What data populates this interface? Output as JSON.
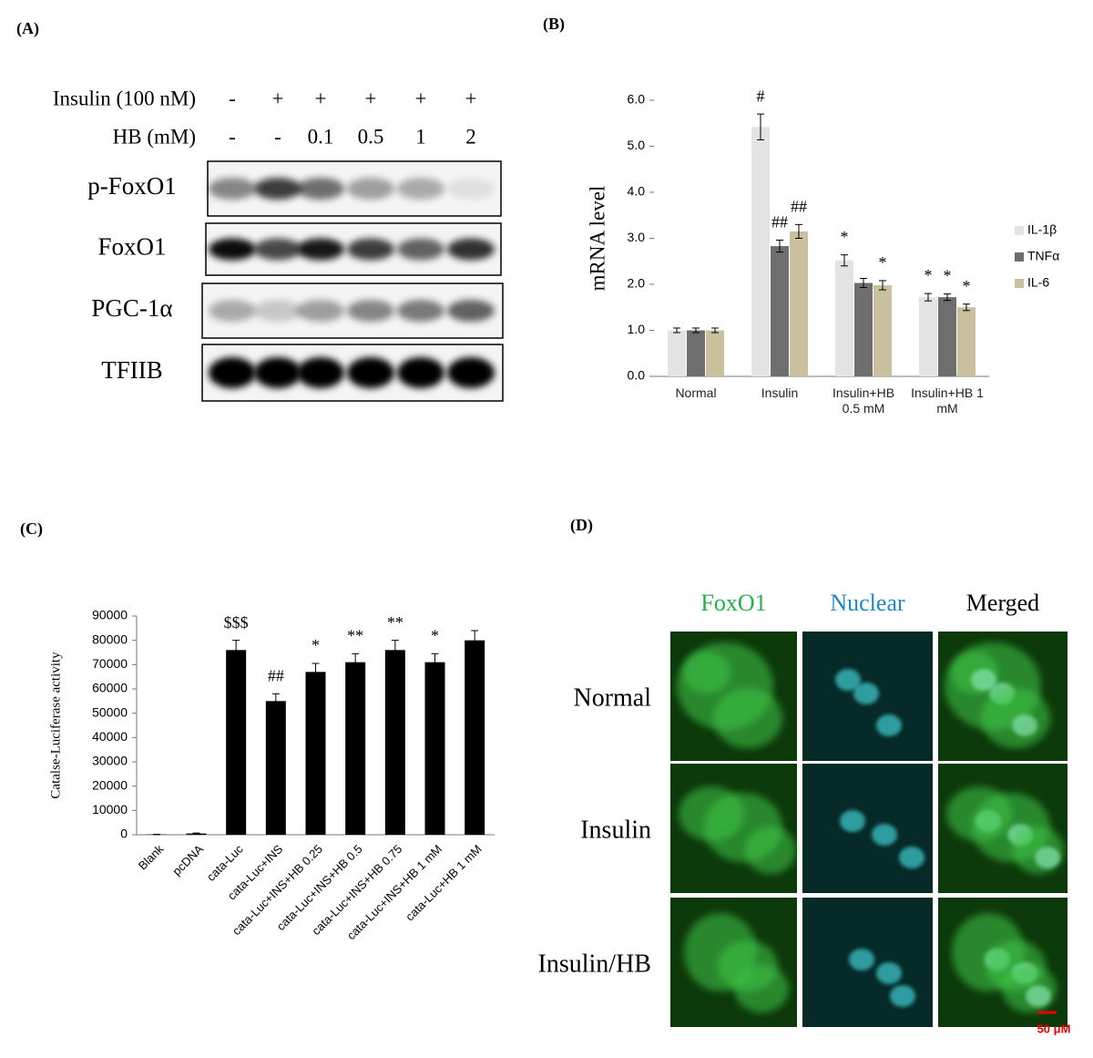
{
  "panel_a": {
    "label": "(A)",
    "treatments": [
      {
        "name": "Insulin (100 nM)",
        "lanes": [
          "-",
          "+",
          "+",
          "+",
          "+",
          "+"
        ]
      },
      {
        "name": "HB (mM)",
        "lanes": [
          "-",
          "-",
          "0.1",
          "0.5",
          "1",
          "2"
        ]
      }
    ],
    "blots": [
      "p-FoxO1",
      "FoxO1",
      "PGC-1α",
      "TFIIB"
    ]
  },
  "chart_data": [
    {
      "type": "bar",
      "panel_label": "(B)",
      "y_label": "mRNA level",
      "categories": [
        "Normal",
        "Insulin",
        "Insulin+HB 0.5 mM",
        "Insulin+HB 1 mM"
      ],
      "series": [
        {
          "name": "IL-1β",
          "color": "#e3e3e3",
          "values": [
            1.0,
            5.42,
            2.52,
            1.72
          ],
          "errors": [
            0.05,
            0.28,
            0.12,
            0.08
          ],
          "annotations": [
            null,
            "#",
            "*",
            "*"
          ]
        },
        {
          "name": "TNFα",
          "color": "#6e6e6e",
          "values": [
            1.0,
            2.83,
            2.03,
            1.72
          ],
          "errors": [
            0.05,
            0.13,
            0.1,
            0.07
          ],
          "annotations": [
            null,
            "##",
            null,
            "*"
          ]
        },
        {
          "name": "IL-6",
          "color": "#c9c19e",
          "values": [
            1.0,
            3.15,
            1.98,
            1.5
          ],
          "errors": [
            0.05,
            0.15,
            0.1,
            0.07
          ],
          "annotations": [
            null,
            "##",
            "*",
            "*"
          ]
        }
      ],
      "ylim": [
        0,
        6
      ],
      "yticks": [
        {
          "value": 0,
          "label": "0.0"
        },
        {
          "value": 1,
          "label": "1.0"
        },
        {
          "value": 2,
          "label": "2.0"
        },
        {
          "value": 3,
          "label": "3.0"
        },
        {
          "value": 4,
          "label": "4.0"
        },
        {
          "value": 5,
          "label": "5.0"
        },
        {
          "value": 6,
          "label": "6.0"
        }
      ],
      "grid": false,
      "legend": "right"
    },
    {
      "type": "bar",
      "panel_label": "(C)",
      "y_label": "Catalse-Luciferase activity",
      "categories": [
        "Blank",
        "pcDNA",
        "cata-Luc",
        "cata-Luc+INS",
        "cata-Luc+INS+HB 0.25",
        "cata-Luc+INS+HB 0.5",
        "cata-Luc+INS+HB 0.75",
        "cata-Luc+INS+HB 1 mM",
        "cata-Luc+HB 1 mM"
      ],
      "values": [
        100,
        500,
        76000,
        55000,
        67000,
        71000,
        76000,
        71000,
        80000
      ],
      "errors": [
        50,
        200,
        4000,
        3000,
        3500,
        3500,
        4000,
        3500,
        4000
      ],
      "annotations": [
        null,
        null,
        "$$$",
        "##",
        "*",
        "**",
        "**",
        "*",
        null
      ],
      "color": "#000000",
      "ylim": [
        0,
        90000
      ],
      "yticks": [
        0,
        10000,
        20000,
        30000,
        40000,
        50000,
        60000,
        70000,
        80000,
        90000
      ],
      "grid": false
    }
  ],
  "panel_d": {
    "label": "(D)",
    "channels": [
      "FoxO1",
      "Nuclear",
      "Merged"
    ],
    "conditions": [
      "Normal",
      "Insulin",
      "Insulin/HB"
    ],
    "scale_bar": "50 μM"
  }
}
